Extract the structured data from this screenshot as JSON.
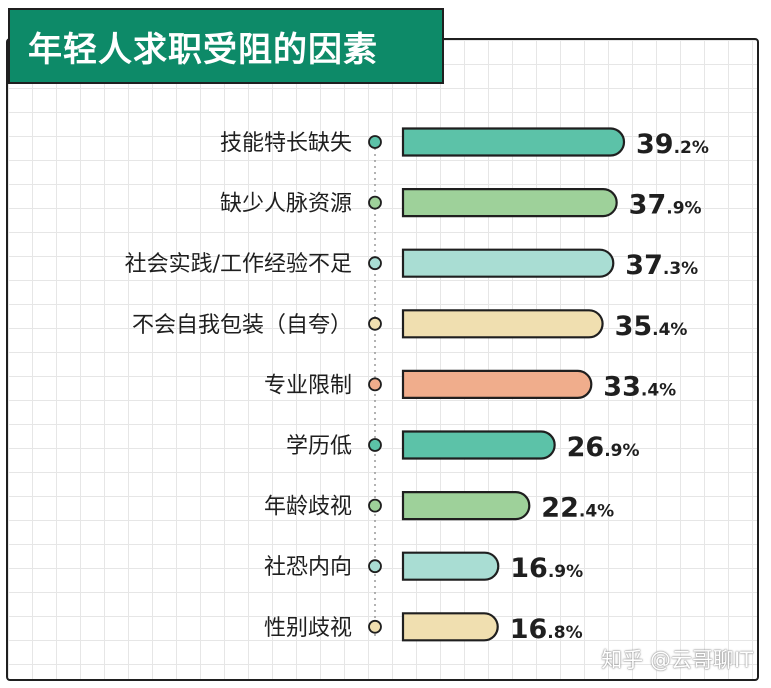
{
  "chart_data": {
    "type": "bar",
    "title": "年轻人求职受阻的因素",
    "orientation": "horizontal",
    "categories": [
      "技能特长缺失",
      "缺少人脉资源",
      "社会实践/工作经验不足",
      "不会自我包装（自夸）",
      "专业限制",
      "学历低",
      "年龄歧视",
      "社恐内向",
      "性别歧视"
    ],
    "values": [
      39.2,
      37.9,
      37.3,
      35.4,
      33.4,
      26.9,
      22.4,
      16.9,
      16.8
    ],
    "value_int_labels": [
      "39",
      "37",
      "37",
      "35",
      "33",
      "26",
      "22",
      "16",
      "16"
    ],
    "value_dec_labels": [
      ".2%",
      ".9%",
      ".3%",
      ".4%",
      ".4%",
      ".9%",
      ".4%",
      ".9%",
      ".8%"
    ],
    "bar_colors": [
      "#5cc2a8",
      "#9ed19a",
      "#a9ddd3",
      "#f0dfb0",
      "#f0ad8c",
      "#5cc2a8",
      "#9ed19a",
      "#a9ddd3",
      "#f0dfb0"
    ],
    "axis_dot_colors": [
      "#5cc2a8",
      "#9ed19a",
      "#a9ddd3",
      "#f0dfb0",
      "#f0ad8c",
      "#5cc2a8",
      "#9ed19a",
      "#a9ddd3",
      "#f0dfb0"
    ],
    "xlim": [
      0,
      39.2
    ],
    "grid": true
  },
  "watermark": "知乎 @云哥聊IT"
}
